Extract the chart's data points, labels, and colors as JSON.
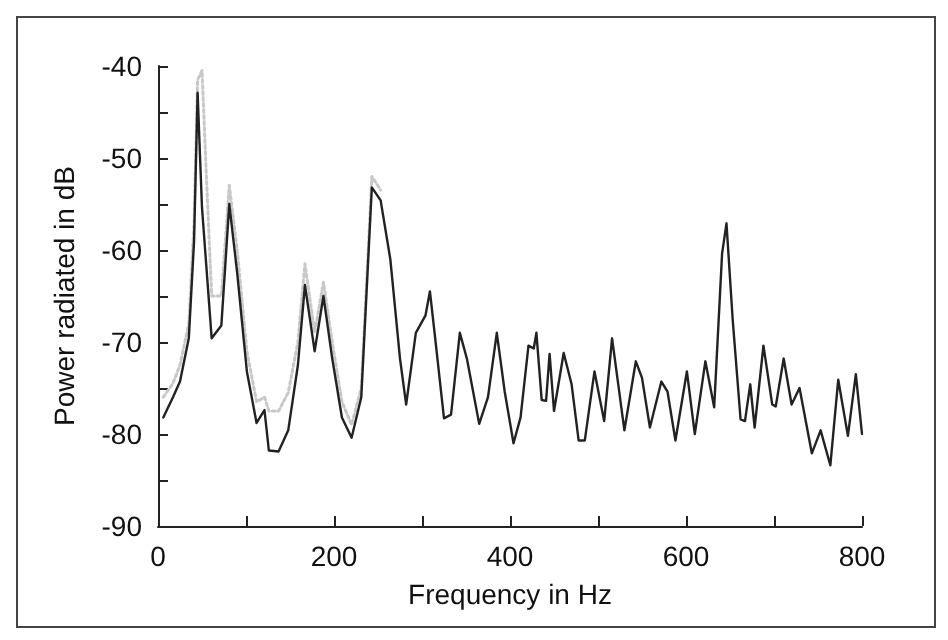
{
  "chart_data": {
    "type": "line",
    "xlabel": "Frequency in Hz",
    "ylabel": "Power radiated in dB",
    "xlim": [
      0,
      800
    ],
    "ylim": [
      -90,
      -40
    ],
    "xticks": [
      0,
      {
        "value": 100,
        "label": null
      },
      200,
      {
        "value": 300,
        "label": null
      },
      400,
      {
        "value": 500,
        "label": null
      },
      600,
      {
        "value": 700,
        "label": null
      },
      800
    ],
    "yticks": [
      -90,
      {
        "value": -85,
        "label": null
      },
      -80,
      {
        "value": -75,
        "label": null
      },
      -70,
      {
        "value": -65,
        "label": null
      },
      -60,
      {
        "value": -55,
        "label": null
      },
      -50,
      {
        "value": -45,
        "label": null
      },
      -40
    ],
    "grid": false,
    "marker": "none",
    "series": [
      {
        "color": "#c8c8c8",
        "line_style": "dotted",
        "x": [
          6,
          17,
          25,
          35,
          41,
          45,
          50,
          55,
          61,
          72,
          81,
          90,
          101,
          112,
          121,
          126,
          137,
          148,
          159,
          167,
          178,
          188,
          198,
          209,
          220,
          231,
          243,
          253
        ],
        "values": [
          -76,
          -74.5,
          -72.5,
          -68,
          -57,
          -41.5,
          -40.5,
          -52,
          -65,
          -65,
          -53,
          -60,
          -71,
          -76.5,
          -76,
          -77.5,
          -77.5,
          -75.5,
          -70,
          -61.5,
          -69,
          -63.5,
          -70,
          -76.5,
          -79,
          -75,
          -52,
          -53.5
        ]
      },
      {
        "color": "#222222",
        "line_style": "solid",
        "x": [
          6,
          17,
          25,
          35,
          41,
          45,
          50,
          61,
          72,
          81,
          90,
          101,
          112,
          121,
          126,
          137,
          148,
          159,
          167,
          178,
          188,
          198,
          209,
          220,
          231,
          243,
          253,
          264,
          275,
          282,
          293,
          304,
          309,
          315,
          325,
          333,
          343,
          351,
          365,
          375,
          385,
          394,
          404,
          412,
          421,
          427,
          430,
          436,
          441,
          445,
          450,
          461,
          470,
          478,
          485,
          496,
          507,
          516,
          530,
          543,
          550,
          559,
          572,
          579,
          588,
          601,
          610,
          622,
          632,
          641,
          646,
          653,
          662,
          667,
          673,
          678,
          688,
          698,
          702,
          711,
          720,
          729,
          743,
          753,
          764,
          773,
          784,
          793,
          800
        ],
        "values": [
          -78.2,
          -76,
          -74.3,
          -69.6,
          -59,
          -42.9,
          -55.4,
          -69.6,
          -68.2,
          -55,
          -62.5,
          -73.2,
          -78.8,
          -77.4,
          -81.8,
          -81.9,
          -79.6,
          -72.5,
          -63.8,
          -71,
          -65,
          -71.8,
          -78.2,
          -80.4,
          -76,
          -53.2,
          -54.6,
          -61,
          -71.8,
          -76.8,
          -69,
          -67.1,
          -64.5,
          -69.6,
          -78.3,
          -77.9,
          -69,
          -71.8,
          -78.9,
          -76,
          -69,
          -75.4,
          -81,
          -78.2,
          -70.4,
          -70.7,
          -69,
          -76.3,
          -76.4,
          -71.3,
          -77.5,
          -71.2,
          -74.6,
          -80.7,
          -80.7,
          -73.2,
          -78.6,
          -69.6,
          -79.6,
          -72.1,
          -73.9,
          -79.3,
          -74.3,
          -75.4,
          -80.7,
          -73.2,
          -80,
          -72.1,
          -77.1,
          -60.4,
          -57.1,
          -67.5,
          -78.4,
          -78.6,
          -74.6,
          -79.3,
          -70.4,
          -76.8,
          -77,
          -71.8,
          -76.8,
          -75,
          -82.1,
          -79.6,
          -83.4,
          -74.1,
          -80.2,
          -73.5,
          -80
        ]
      }
    ]
  }
}
